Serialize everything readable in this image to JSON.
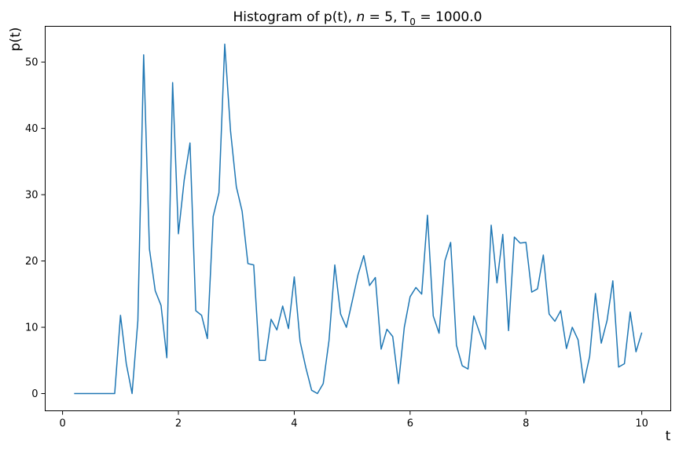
{
  "chart_data": {
    "type": "line",
    "title": {
      "prefix": "Histogram of p(t), ",
      "n_symbol": "n",
      "n_text": " = 5, T",
      "sub": "0",
      "suffix": " = 1000.0"
    },
    "xlabel": "t",
    "ylabel": "p(t)",
    "xlim": [
      -0.3,
      10.5
    ],
    "ylim": [
      -2.6,
      55.4
    ],
    "xticks": [
      0,
      2,
      4,
      6,
      8,
      10
    ],
    "yticks": [
      0,
      10,
      20,
      30,
      40,
      50
    ],
    "grid": false,
    "line_color": "#1f77b4",
    "x": [
      0.2,
      0.3,
      0.4,
      0.5,
      0.6,
      0.7,
      0.8,
      0.9,
      1.0,
      1.1,
      1.2,
      1.3,
      1.4,
      1.5,
      1.6,
      1.7,
      1.8,
      1.9,
      2.0,
      2.1,
      2.2,
      2.3,
      2.4,
      2.5,
      2.6,
      2.7,
      2.8,
      2.9,
      3.0,
      3.1,
      3.2,
      3.3,
      3.4,
      3.5,
      3.6,
      3.7,
      3.8,
      3.9,
      4.0,
      4.1,
      4.2,
      4.3,
      4.4,
      4.5,
      4.6,
      4.7,
      4.8,
      4.9,
      5.0,
      5.1,
      5.2,
      5.3,
      5.4,
      5.5,
      5.6,
      5.7,
      5.8,
      5.9,
      6.0,
      6.1,
      6.2,
      6.3,
      6.4,
      6.5,
      6.6,
      6.7,
      6.8,
      6.9,
      7.0,
      7.1,
      7.2,
      7.3,
      7.4,
      7.5,
      7.6,
      7.7,
      7.8,
      7.9,
      8.0,
      8.1,
      8.2,
      8.3,
      8.4,
      8.5,
      8.6,
      8.7,
      8.8,
      8.9,
      9.0,
      9.1,
      9.2,
      9.3,
      9.4,
      9.5,
      9.6,
      9.7,
      9.8,
      9.9,
      10.0
    ],
    "y": [
      0,
      0,
      0,
      0,
      0,
      0,
      0,
      0,
      11.8,
      4.5,
      0,
      11,
      51.1,
      21.8,
      15.5,
      13.3,
      5.4,
      46.9,
      24.1,
      32.2,
      37.8,
      12.5,
      11.8,
      8.3,
      26.7,
      30.3,
      52.7,
      39.6,
      31.2,
      27.5,
      19.6,
      19.4,
      5,
      5,
      11.2,
      9.6,
      13.2,
      9.8,
      17.6,
      7.9,
      3.9,
      0.5,
      0,
      1.5,
      8,
      19.4,
      12,
      10,
      13.9,
      17.9,
      20.8,
      16.3,
      17.5,
      6.7,
      9.7,
      8.6,
      1.5,
      10,
      14.6,
      16,
      15,
      26.9,
      11.7,
      9.1,
      20,
      22.8,
      7.3,
      4.2,
      3.7,
      11.7,
      9.2,
      6.7,
      25.4,
      16.7,
      24,
      9.5,
      23.6,
      22.7,
      22.8,
      15.3,
      15.8,
      20.9,
      12,
      10.9,
      12.5,
      6.8,
      10,
      8.1,
      1.6,
      5.6,
      15.1,
      7.6,
      11,
      17,
      4,
      4.5,
      12.3,
      6.3,
      9.2
    ]
  }
}
